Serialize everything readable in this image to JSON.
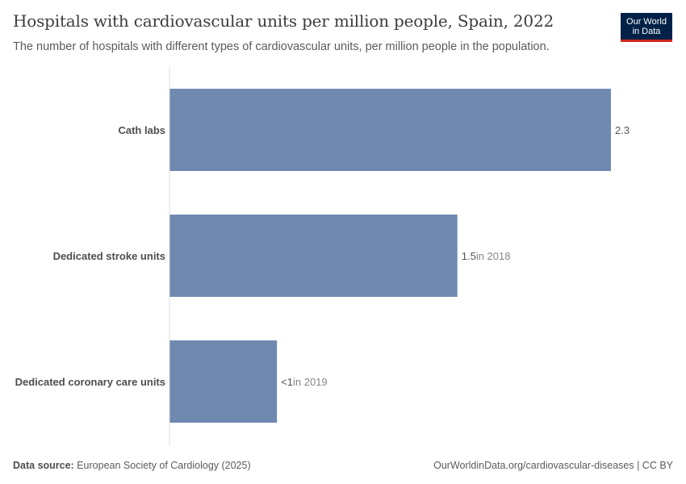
{
  "header": {
    "title": "Hospitals with cardiovascular units per million people, Spain, 2022",
    "subtitle": "The number of hospitals with different types of cardiovascular units, per million people in the population."
  },
  "logo": {
    "line1": "Our World",
    "line2": "in Data"
  },
  "colors": {
    "bar": "#6f89b1",
    "axis": "#dddddd",
    "logo_bg": "#002147",
    "logo_accent": "#ce261e"
  },
  "chart_data": {
    "type": "bar",
    "orientation": "horizontal",
    "title": "Hospitals with cardiovascular units per million people, Spain, 2022",
    "categories": [
      "Cath labs",
      "Dedicated stroke units",
      "Dedicated coronary care units"
    ],
    "values": [
      2.3,
      1.5,
      0.56
    ],
    "value_labels": [
      "2.3",
      "1.5",
      "<1"
    ],
    "year_notes": [
      "",
      "in 2018",
      "in 2019"
    ],
    "xlim": [
      0,
      2.3
    ],
    "grid": false
  },
  "footer": {
    "source_label": "Data source:",
    "source_text": "European Society of Cardiology (2025)",
    "url": "OurWorldinData.org/cardiovascular-diseases | CC BY"
  }
}
